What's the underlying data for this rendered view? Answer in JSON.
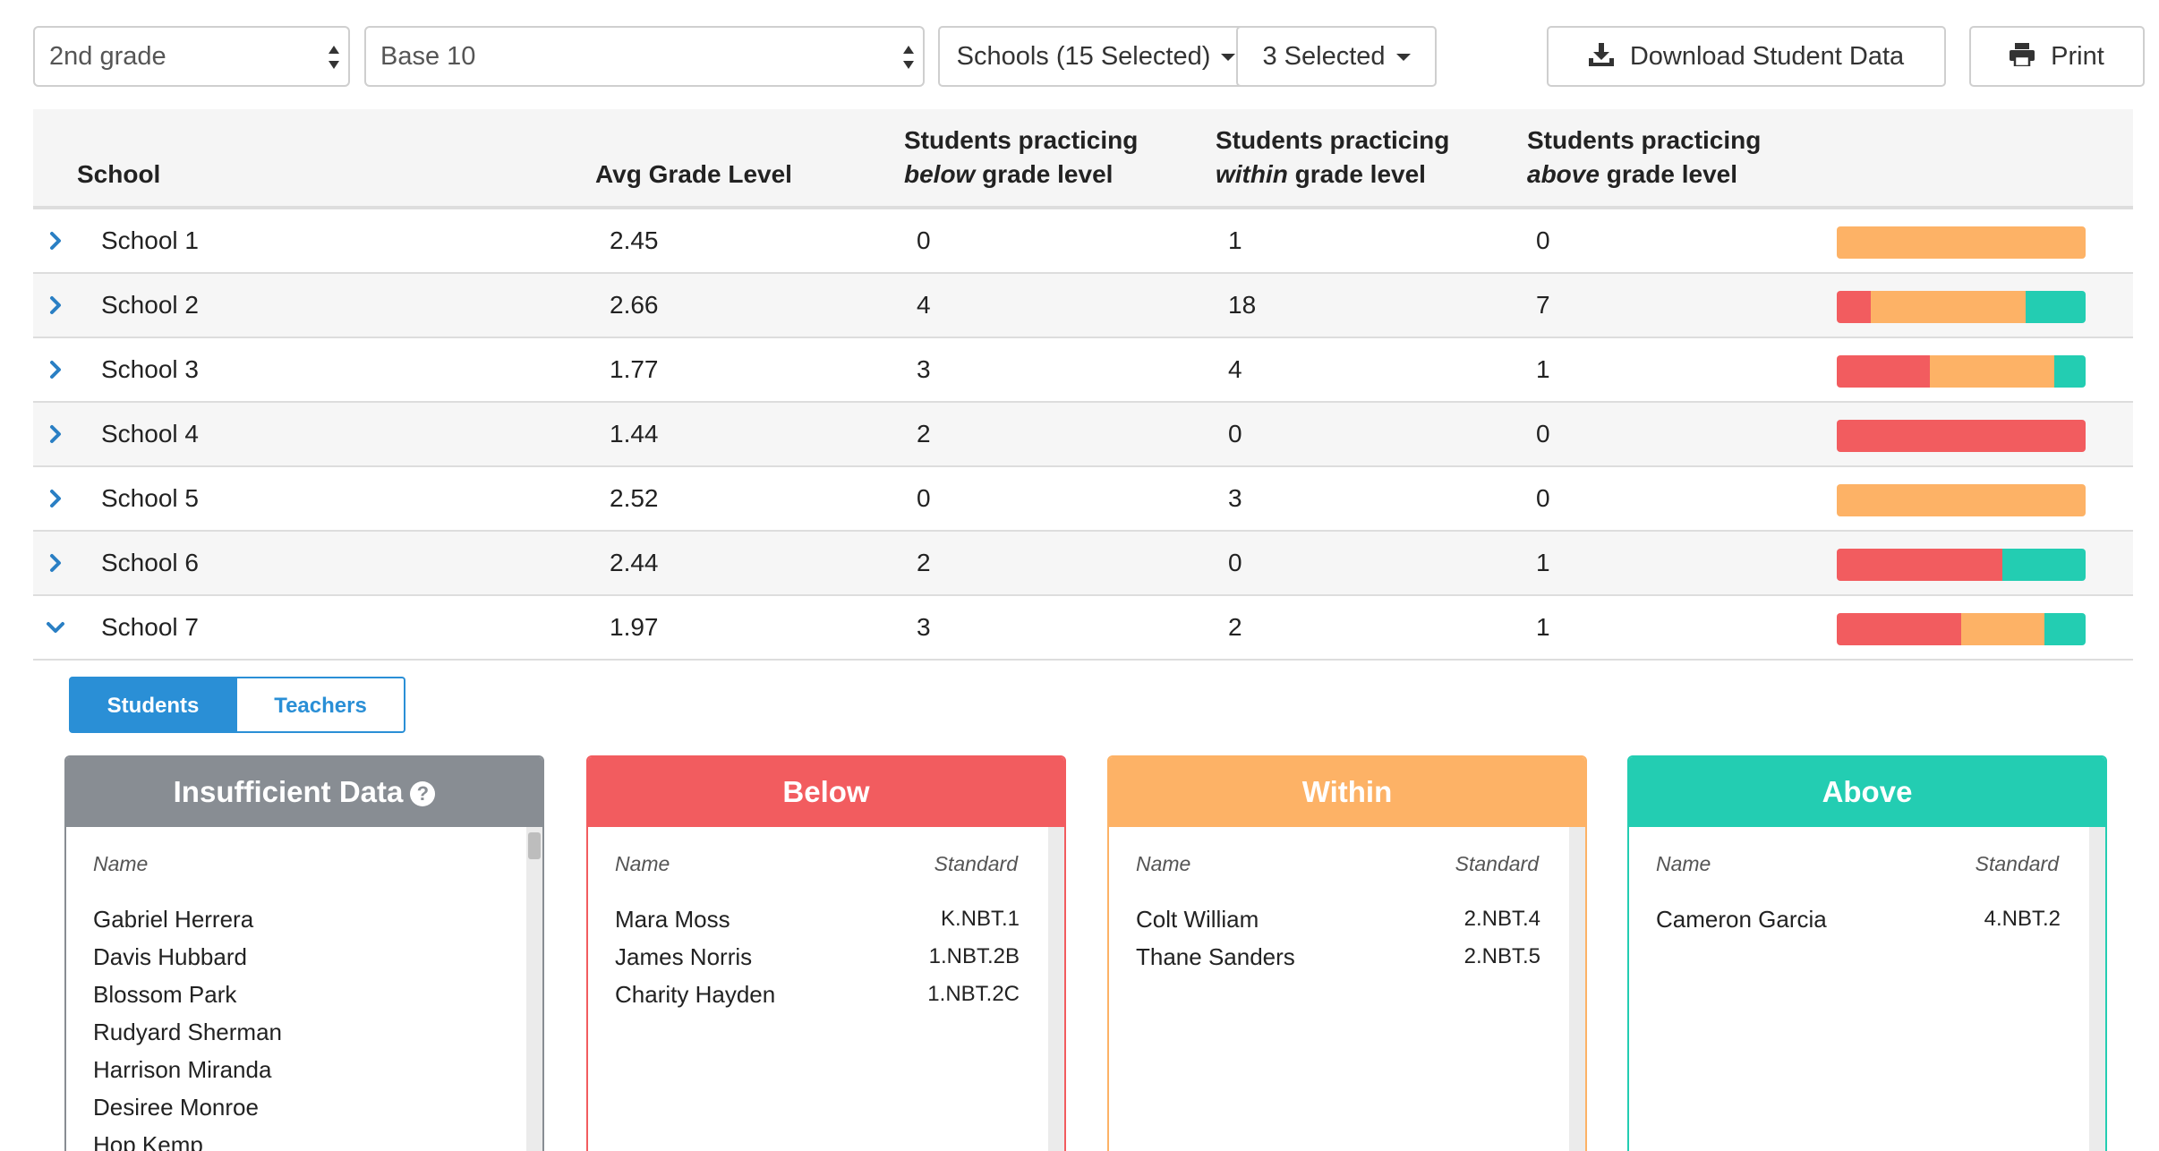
{
  "toolbar": {
    "grade_select": "2nd grade",
    "domain_select": "Base 10",
    "schools_dropdown": "Schools (15 Selected)",
    "selected_dropdown": "3 Selected",
    "download_label": "Download Student Data",
    "print_label": "Print"
  },
  "table": {
    "headers": {
      "school": "School",
      "avg": "Avg Grade Level",
      "below_prefix": "Students practicing",
      "below_em": "below",
      "below_suffix": "grade level",
      "within_prefix": "Students practicing",
      "within_em": "within",
      "within_suffix": "grade level",
      "above_prefix": "Students practicing",
      "above_em": "above",
      "above_suffix": "grade level"
    },
    "rows": [
      {
        "school": "School 1",
        "avg": "2.45",
        "below": "0",
        "within": "1",
        "above": "0",
        "expanded": false
      },
      {
        "school": "School 2",
        "avg": "2.66",
        "below": "4",
        "within": "18",
        "above": "7",
        "expanded": false
      },
      {
        "school": "School 3",
        "avg": "1.77",
        "below": "3",
        "within": "4",
        "above": "1",
        "expanded": false
      },
      {
        "school": "School 4",
        "avg": "1.44",
        "below": "2",
        "within": "0",
        "above": "0",
        "expanded": false
      },
      {
        "school": "School 5",
        "avg": "2.52",
        "below": "0",
        "within": "3",
        "above": "0",
        "expanded": false
      },
      {
        "school": "School 6",
        "avg": "2.44",
        "below": "2",
        "within": "0",
        "above": "1",
        "expanded": false
      },
      {
        "school": "School 7",
        "avg": "1.97",
        "below": "3",
        "within": "2",
        "above": "1",
        "expanded": true
      }
    ]
  },
  "colors": {
    "below": "#f25c5f",
    "within": "#fdb266",
    "above": "#23cdb2",
    "insufficient": "#888d93",
    "accent": "#2a8fd6",
    "chevron": "#2a7fc4"
  },
  "tabs": {
    "students": "Students",
    "teachers": "Teachers"
  },
  "panels": {
    "insufficient": {
      "title": "Insufficient Data",
      "name_header": "Name",
      "students": [
        "Gabriel Herrera",
        "Davis Hubbard",
        "Blossom Park",
        "Rudyard Sherman",
        "Harrison Miranda",
        "Desiree Monroe",
        "Hop Kemp"
      ]
    },
    "below": {
      "title": "Below",
      "name_header": "Name",
      "standard_header": "Standard",
      "students": [
        {
          "name": "Mara Moss",
          "standard": "K.NBT.1"
        },
        {
          "name": "James Norris",
          "standard": "1.NBT.2B"
        },
        {
          "name": "Charity Hayden",
          "standard": "1.NBT.2C"
        }
      ]
    },
    "within": {
      "title": "Within",
      "name_header": "Name",
      "standard_header": "Standard",
      "students": [
        {
          "name": "Colt William",
          "standard": "2.NBT.4"
        },
        {
          "name": "Thane Sanders",
          "standard": "2.NBT.5"
        }
      ]
    },
    "above": {
      "title": "Above",
      "name_header": "Name",
      "standard_header": "Standard",
      "students": [
        {
          "name": "Cameron Garcia",
          "standard": "4.NBT.2"
        }
      ]
    }
  }
}
